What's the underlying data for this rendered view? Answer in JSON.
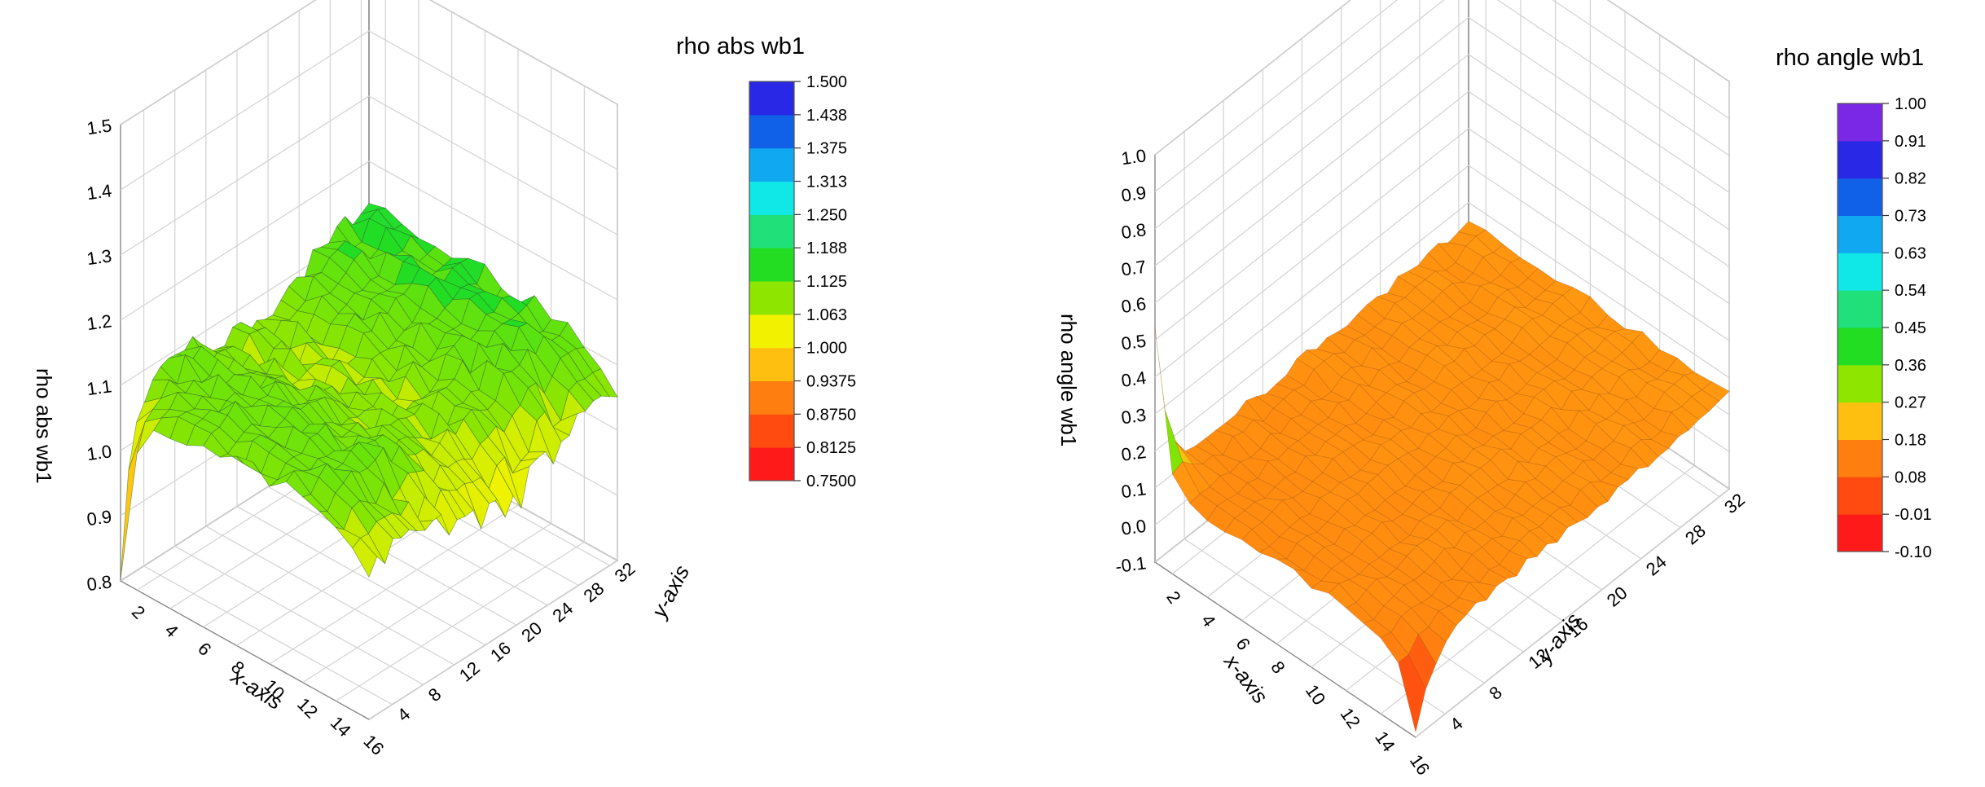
{
  "chart_data": [
    {
      "type": "surface",
      "title": "rho abs wb1",
      "xlabel": "x-axis",
      "ylabel": "y-axis",
      "zlabel": "rho abs wb1",
      "xlim": [
        1,
        16
      ],
      "ylim": [
        1,
        33
      ],
      "zlim": [
        0.8,
        1.5
      ],
      "x_ticks": [
        "2",
        "4",
        "6",
        "8",
        "10",
        "12",
        "14",
        "16"
      ],
      "y_ticks": [
        "4",
        "8",
        "12",
        "16",
        "20",
        "24",
        "28",
        "32"
      ],
      "z_ticks": [
        "0.8",
        "0.9",
        "1.0",
        "1.1",
        "1.2",
        "1.3",
        "1.4",
        "1.5"
      ],
      "grid": true,
      "colorbar": {
        "position": "right",
        "levels": [
          "0.7500",
          "0.8125",
          "0.8750",
          "0.9375",
          "1.000",
          "1.063",
          "1.125",
          "1.188",
          "1.250",
          "1.313",
          "1.375",
          "1.438",
          "1.500"
        ],
        "colors": [
          "#ff1a1a",
          "#ff4a10",
          "#ff7e10",
          "#ffbf10",
          "#f2f200",
          "#8ee600",
          "#22dd22",
          "#20e07a",
          "#10e8e8",
          "#10a8f0",
          "#1060e8",
          "#2828e6",
          "#7a28e6",
          "#a020f0"
        ]
      },
      "surface_summary": {
        "interior_value": 1.08,
        "low_corner": {
          "x": 1,
          "y": 1,
          "value": 0.82
        },
        "high_edge": {
          "y": 32,
          "value": 1.13
        },
        "dips_near_x_max": 1.0
      }
    },
    {
      "type": "surface",
      "title": "rho angle  wb1",
      "xlabel": "x-axis",
      "ylabel": "y-axis",
      "zlabel": "rho angle  wb1",
      "xlim": [
        1,
        16
      ],
      "ylim": [
        1,
        33
      ],
      "zlim": [
        -0.1,
        1.0
      ],
      "x_ticks": [
        "2",
        "4",
        "6",
        "8",
        "10",
        "12",
        "14",
        "16"
      ],
      "y_ticks": [
        "4",
        "8",
        "12",
        "16",
        "20",
        "24",
        "28",
        "32"
      ],
      "z_ticks": [
        "-0.1",
        "0.0",
        "0.1",
        "0.2",
        "0.3",
        "0.4",
        "0.5",
        "0.6",
        "0.7",
        "0.8",
        "0.9",
        "1.0"
      ],
      "grid": true,
      "colorbar": {
        "position": "right",
        "levels": [
          "-0.10",
          "-0.01",
          "0.08",
          "0.18",
          "0.27",
          "0.36",
          "0.45",
          "0.54",
          "0.63",
          "0.73",
          "0.82",
          "0.91",
          "1.00"
        ],
        "colors": [
          "#ff1a1a",
          "#ff4a10",
          "#ff7e10",
          "#ffbf10",
          "#8ee600",
          "#22dd22",
          "#20e07a",
          "#10e8e8",
          "#10a8f0",
          "#1060e8",
          "#2828e6",
          "#7a28e6",
          "#a020f0"
        ]
      },
      "surface_summary": {
        "interior_value": 0.12,
        "spike": {
          "x": 1,
          "y": 1,
          "value": 0.55
        },
        "low_corner": {
          "x": 16,
          "y": 1,
          "value": -0.1
        },
        "far_edge_value": 0.16
      }
    }
  ]
}
